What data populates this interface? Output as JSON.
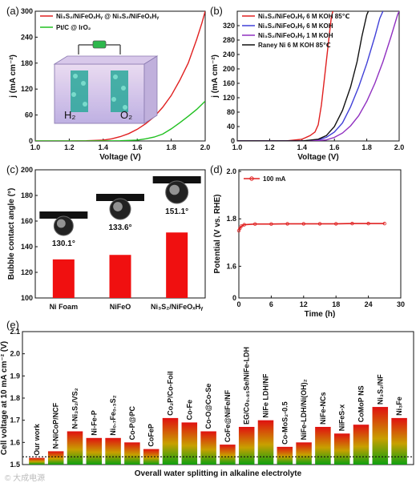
{
  "panels": {
    "a": "(a)",
    "b": "(b)",
    "c": "(c)",
    "d": "(d)",
    "e": "(e)"
  },
  "inset_a": {
    "h2": "H₂",
    "o2": "O₂"
  },
  "watermark": "© 大成电源",
  "chart_data": [
    {
      "id": "a",
      "type": "line",
      "xlabel": "Voltage (V)",
      "ylabel": "j (mA cm⁻²)",
      "xlim": [
        1.0,
        2.0
      ],
      "ylim": [
        0,
        300
      ],
      "xticks": [
        "1.0",
        "1.2",
        "1.4",
        "1.6",
        "1.8",
        "2.0"
      ],
      "yticks": [
        "0",
        "60",
        "120",
        "180",
        "240",
        "300"
      ],
      "legend_position": "top-left",
      "series": [
        {
          "name": "Ni₃S₂/NiFeOₓHᵧ @ Ni₃S₂/NiFeOₓHᵧ",
          "color": "#e02020",
          "points": [
            [
              1.0,
              0
            ],
            [
              1.1,
              0
            ],
            [
              1.2,
              0
            ],
            [
              1.3,
              0.5
            ],
            [
              1.4,
              2
            ],
            [
              1.45,
              5
            ],
            [
              1.5,
              10
            ],
            [
              1.55,
              17
            ],
            [
              1.6,
              27
            ],
            [
              1.65,
              40
            ],
            [
              1.7,
              56
            ],
            [
              1.75,
              78
            ],
            [
              1.8,
              105
            ],
            [
              1.85,
              140
            ],
            [
              1.9,
              180
            ],
            [
              1.95,
              235
            ],
            [
              1.98,
              272
            ],
            [
              2.0,
              300
            ]
          ]
        },
        {
          "name": "Pt/C @ IrO₂",
          "color": "#20c020",
          "points": [
            [
              1.0,
              0
            ],
            [
              1.3,
              0
            ],
            [
              1.5,
              0.5
            ],
            [
              1.6,
              2
            ],
            [
              1.65,
              5
            ],
            [
              1.7,
              9
            ],
            [
              1.75,
              16
            ],
            [
              1.8,
              28
            ],
            [
              1.85,
              42
            ],
            [
              1.9,
              57
            ],
            [
              1.95,
              73
            ],
            [
              2.0,
              92
            ]
          ]
        }
      ]
    },
    {
      "id": "b",
      "type": "line",
      "xlabel": "Voltage (V)",
      "ylabel": "j (mA cm⁻²)",
      "xlim": [
        1.0,
        2.0
      ],
      "ylim": [
        0,
        360
      ],
      "xticks": [
        "1.0",
        "1.2",
        "1.4",
        "1.6",
        "1.8",
        "2.0"
      ],
      "yticks": [
        "0",
        "40",
        "80",
        "120",
        "160",
        "200",
        "240",
        "280",
        "320"
      ],
      "legend_position": "top-left",
      "series": [
        {
          "name": "Ni₃S₂/NiFeOₓHᵧ 6 M KOH 85℃",
          "color": "#e02020",
          "points": [
            [
              1.0,
              0
            ],
            [
              1.3,
              0
            ],
            [
              1.4,
              5
            ],
            [
              1.45,
              15
            ],
            [
              1.48,
              25
            ],
            [
              1.5,
              45
            ],
            [
              1.52,
              100
            ],
            [
              1.54,
              180
            ],
            [
              1.56,
              260
            ],
            [
              1.58,
              340
            ],
            [
              1.59,
              360
            ]
          ]
        },
        {
          "name": "Ni₃S₂/NiFeOₓHᵧ 6 M KOH",
          "color": "#4040d8",
          "points": [
            [
              1.0,
              0
            ],
            [
              1.4,
              0
            ],
            [
              1.5,
              3
            ],
            [
              1.55,
              10
            ],
            [
              1.6,
              25
            ],
            [
              1.65,
              50
            ],
            [
              1.7,
              95
            ],
            [
              1.75,
              150
            ],
            [
              1.8,
              215
            ],
            [
              1.85,
              290
            ],
            [
              1.88,
              340
            ],
            [
              1.9,
              360
            ]
          ]
        },
        {
          "name": "Ni₃S₂/NiFeOₓHᵧ 1 M KOH",
          "color": "#9030c0",
          "points": [
            [
              1.0,
              0
            ],
            [
              1.45,
              0
            ],
            [
              1.55,
              3
            ],
            [
              1.6,
              10
            ],
            [
              1.65,
              22
            ],
            [
              1.7,
              42
            ],
            [
              1.75,
              70
            ],
            [
              1.8,
              110
            ],
            [
              1.85,
              160
            ],
            [
              1.9,
              220
            ],
            [
              1.95,
              290
            ],
            [
              1.99,
              350
            ],
            [
              2.0,
              360
            ]
          ]
        },
        {
          "name": "Raney Ni 6 M KOH 85℃",
          "color": "#111111",
          "points": [
            [
              1.0,
              0
            ],
            [
              1.4,
              0
            ],
            [
              1.5,
              5
            ],
            [
              1.55,
              15
            ],
            [
              1.6,
              40
            ],
            [
              1.65,
              85
            ],
            [
              1.7,
              150
            ],
            [
              1.74,
              220
            ],
            [
              1.77,
              290
            ],
            [
              1.8,
              350
            ],
            [
              1.81,
              360
            ]
          ]
        }
      ]
    },
    {
      "id": "c",
      "type": "bar",
      "xlabel": "",
      "ylabel": "Bubble contact angle (°)",
      "ylim": [
        100,
        200
      ],
      "yticks": [
        "100",
        "120",
        "140",
        "160",
        "180",
        "200"
      ],
      "categories": [
        "Ni Foam",
        "NiFeO",
        "Ni₃S₂/NiFeOₓHᵧ"
      ],
      "values": [
        130.1,
        133.6,
        151.1
      ],
      "value_labels": [
        "130.1°",
        "133.6°",
        "151.1°"
      ],
      "color": "#f01010"
    },
    {
      "id": "d",
      "type": "line",
      "xlabel": "Time (h)",
      "ylabel": "Potential (V vs. RHE)",
      "xlim": [
        0,
        30
      ],
      "ylim": [
        0,
        2.0
      ],
      "xticks": [
        "0",
        "6",
        "12",
        "18",
        "24",
        "30"
      ],
      "yticks": [
        "0",
        "1.6",
        "1.8",
        "2.0"
      ],
      "legend_position": "top-left",
      "series": [
        {
          "name": "100 mA",
          "color": "#e02020",
          "points": [
            [
              0,
              1.75
            ],
            [
              0.2,
              1.76
            ],
            [
              0.5,
              1.77
            ],
            [
              1,
              1.775
            ],
            [
              3,
              1.778
            ],
            [
              6,
              1.778
            ],
            [
              9,
              1.779
            ],
            [
              12,
              1.779
            ],
            [
              15,
              1.779
            ],
            [
              18,
              1.779
            ],
            [
              21,
              1.78
            ],
            [
              24,
              1.78
            ],
            [
              27,
              1.78
            ]
          ]
        }
      ]
    },
    {
      "id": "e",
      "type": "bar",
      "xlabel": "Overall water splitting in alkaline electrolyte",
      "ylabel": "Cell voltage at 10 mA cm⁻² (V)",
      "ylim": [
        1.5,
        2.1
      ],
      "yticks": [
        "1.5",
        "1.6",
        "1.7",
        "1.8",
        "1.9",
        "2.0",
        "2.1"
      ],
      "reference_line": 1.535,
      "categories": [
        "Our work",
        "N-NiCoP/NCF",
        "N-Ni₃S₂/VS₂",
        "Ni-Fe-P",
        "Ni₀.₇Fe₀.₃S₂",
        "Co-P@PC",
        "CoFeP",
        "Co₂P/Co-Foil",
        "Co-Fe",
        "Co-O@Co-Se",
        "CoFe@NiFe/NF",
        "EG/Co₀.₈₅Se/NiFe-LDH",
        "NiFe LDH/NF",
        "Co-MoS₂-0.5",
        "NiFe-LDH/Ni(OH)₂",
        "NiFe-NCs",
        "NiFeS-x",
        "CoMoP NS",
        "Ni₃S₂/NF",
        "Ni₃Fe"
      ],
      "values": [
        1.53,
        1.56,
        1.65,
        1.62,
        1.62,
        1.6,
        1.57,
        1.71,
        1.69,
        1.65,
        1.59,
        1.67,
        1.7,
        1.58,
        1.6,
        1.67,
        1.64,
        1.68,
        1.76,
        1.71
      ],
      "label_colors": {
        "highlight": "#e02020",
        "normal": "#111111"
      },
      "colors": {
        "top": "#e01010",
        "bottom": "#10a010"
      }
    }
  ]
}
